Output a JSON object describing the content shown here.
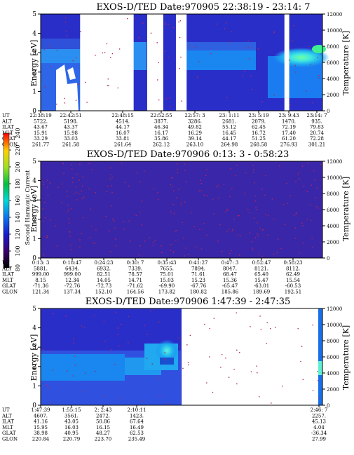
{
  "chart_data": [
    {
      "type": "heatmap",
      "title": "EXOS-D/TED   Date:970905  22:38:19 - 23:14: 7",
      "ylabel": "Energy [eV]",
      "y2label": "Temperature [K]",
      "ylim": [
        0,
        5
      ],
      "y2lim": [
        0,
        12000
      ],
      "yticks": [
        "0",
        "1",
        "2",
        "3",
        "4",
        "5"
      ],
      "y2ticks": [
        "0",
        "2000",
        "4000",
        "6000",
        "8000",
        "10000",
        "12000"
      ],
      "row_labels": [
        "UT",
        "ALT",
        "ILAT",
        "MLT",
        "GLAT",
        "GLON"
      ],
      "columns": [
        [
          "22:38:19",
          "5722.",
          "43.67",
          "15.91",
          "33.29",
          "261.77"
        ],
        [
          "22:42:51",
          "5198.",
          "43.37",
          "15.98",
          "33.03",
          "261.58"
        ],
        [
          "22:48:15",
          "4514.",
          "44.17",
          "16.07",
          "33.81",
          "261.64"
        ],
        [
          "22:52:55",
          "3877.",
          "46.34",
          "16.17",
          "35.86",
          "262.12"
        ],
        [
          "22:57: 3",
          "3286.",
          "49.82",
          "16.29",
          "39.14",
          "263.10"
        ],
        [
          "23: 1:11",
          "2681.",
          "55.12",
          "16.45",
          "44.17",
          "264.98"
        ],
        [
          "23: 5:19",
          "2079.",
          "62.45",
          "16.72",
          "51.25",
          "268.58"
        ],
        [
          "23: 9:43",
          "1470.",
          "72.19",
          "17.40",
          "61.20",
          "276.93"
        ],
        [
          "23:14: 7",
          "935.",
          "79.83",
          "20.74",
          "72.28",
          "301.21"
        ]
      ],
      "gaps": [
        [
          0.14,
          0.33
        ],
        [
          0.378,
          0.435
        ],
        [
          0.48,
          0.5
        ],
        [
          0.5,
          0.518
        ],
        [
          0.865,
          0.882
        ]
      ]
    },
    {
      "type": "heatmap",
      "title": "EXOS-D/TED   Date:970906   0:13: 3 - 0:58:23",
      "ylabel": "Energy [eV]",
      "y2label": "Temperature [K]",
      "ylim": [
        0,
        5
      ],
      "y2lim": [
        0,
        12000
      ],
      "yticks": [
        "0",
        "1",
        "2",
        "3",
        "4",
        "5"
      ],
      "y2ticks": [
        "0",
        "2000",
        "4000",
        "6000",
        "8000",
        "10000",
        "12000"
      ],
      "colorbar": {
        "label": "Second Harmonic Current",
        "ticks": [
          "80",
          "100",
          "120",
          "140",
          "160",
          "180",
          "200",
          "220",
          "240"
        ]
      },
      "row_labels": [
        "UT",
        "ALT",
        "ILAT",
        "MLT",
        "GLAT",
        "GLON"
      ],
      "columns": [
        [
          "0:13: 3",
          "5881.",
          "999.00",
          "8.15",
          "-71.36",
          "121.34"
        ],
        [
          "0:18:47",
          "6434.",
          "999.00",
          "12.34",
          "-72.76",
          "137.34"
        ],
        [
          "0:24:23",
          "6932.",
          "82.51",
          "14.05",
          "-72.73",
          "152.10"
        ],
        [
          "0:30: 7",
          "7339.",
          "78.57",
          "14.71",
          "-71.62",
          "164.56"
        ],
        [
          "0:35:43",
          "7655.",
          "75.01",
          "15.03",
          "-69.90",
          "173.82"
        ],
        [
          "0:41:27",
          "7894.",
          "71.61",
          "15.23",
          "-67.76",
          "180.82"
        ],
        [
          "0:47: 3",
          "8047.",
          "68.47",
          "15.36",
          "-65.47",
          "185.86"
        ],
        [
          "0:52:47",
          "8121.",
          "65.40",
          "15.47",
          "-63.01",
          "189.69"
        ],
        [
          "0:58:23",
          "8112.",
          "62.49",
          "15.54",
          "-60.53",
          "192.51"
        ]
      ]
    },
    {
      "type": "heatmap",
      "title": "EXOS-D/TED   Date:970906   1:47:39 - 2:47:35",
      "ylabel": "Energy [eV]",
      "y2label": "Temperature [K]",
      "ylim": [
        0,
        5
      ],
      "y2lim": [
        0,
        12000
      ],
      "yticks": [
        "0",
        "1",
        "2",
        "3",
        "4",
        "5"
      ],
      "y2ticks": [
        "0",
        "2000",
        "4000",
        "6000",
        "8000",
        "10000",
        "12000"
      ],
      "row_labels": [
        "UT",
        "ALT",
        "ILAT",
        "MLT",
        "GLAT",
        "GLON"
      ],
      "columns": [
        [
          "1:47:39",
          "4607.",
          "41.16",
          "15.95",
          "38.98",
          "220.84"
        ],
        [
          "1:55:15",
          "3561.",
          "43.05",
          "16.03",
          "40.95",
          "220.79"
        ],
        [
          "2: 2:43",
          "2472.",
          "50.86",
          "16.15",
          "48.27",
          "223.70"
        ],
        [
          "2:10:11",
          "1423.",
          "67.64",
          "16.49",
          "62.53",
          "235.49"
        ],
        [
          "2:46: 7",
          "2257.",
          "45.13",
          "4.04",
          "-36.34",
          "27.99"
        ]
      ],
      "gaps": [
        [
          0.5,
          0.985
        ]
      ]
    }
  ]
}
